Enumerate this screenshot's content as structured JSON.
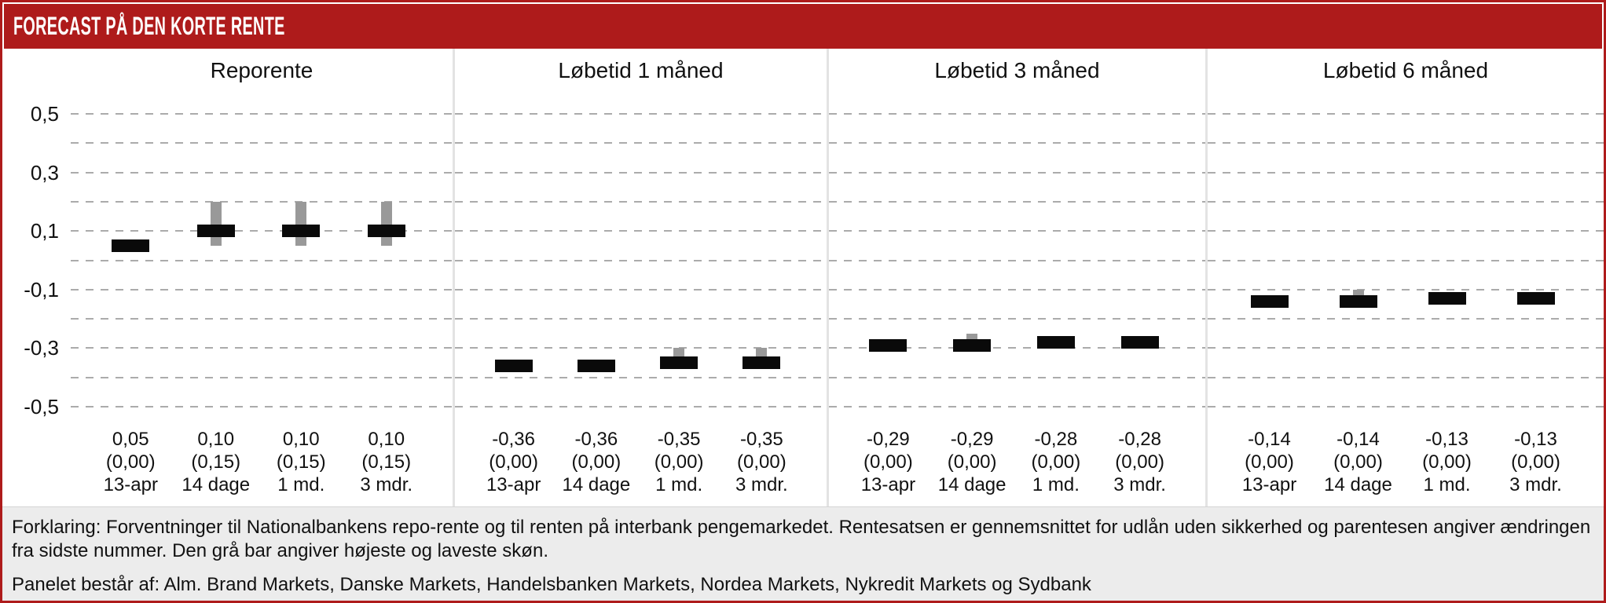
{
  "header": {
    "title": "FORECAST PÅ DEN KORTE RENTE"
  },
  "colors": {
    "accent_red": "#AE1B1B",
    "bar_black": "#0a0a0a",
    "bar_gray": "#999999",
    "grid_dash": "#ababab",
    "panel_separator": "#e3e3e3",
    "footer_bg": "#ececec"
  },
  "y_axis": {
    "tick_labels": [
      "0,5",
      "0,3",
      "0,1",
      "-0,1",
      "-0,3",
      "-0,5"
    ],
    "tick_values": [
      0.5,
      0.3,
      0.1,
      -0.1,
      -0.3,
      -0.5
    ]
  },
  "chart_data": {
    "type": "bar",
    "title": "FORECAST PÅ DEN KORTE RENTE",
    "ylim": [
      -0.5,
      0.5
    ],
    "grid": "horizontal dashed lines every 0.1",
    "legend": "black bar = mean forecast, gray bar = highest and lowest estimate",
    "panels": [
      {
        "title": "Reporente",
        "bars": [
          {
            "period": "13-apr",
            "value": 0.05,
            "value_label": "0,05",
            "change_label": "(0,00)",
            "range_high": null,
            "range_low": null
          },
          {
            "period": "14 dage",
            "value": 0.1,
            "value_label": "0,10",
            "change_label": "(0,15)",
            "range_high": 0.2,
            "range_low": 0.05
          },
          {
            "period": "1 md.",
            "value": 0.1,
            "value_label": "0,10",
            "change_label": "(0,15)",
            "range_high": 0.2,
            "range_low": 0.05
          },
          {
            "period": "3 mdr.",
            "value": 0.1,
            "value_label": "0,10",
            "change_label": "(0,15)",
            "range_high": 0.2,
            "range_low": 0.05
          }
        ]
      },
      {
        "title": "Løbetid 1 måned",
        "bars": [
          {
            "period": "13-apr",
            "value": -0.36,
            "value_label": "-0,36",
            "change_label": "(0,00)",
            "range_high": null,
            "range_low": null
          },
          {
            "period": "14 dage",
            "value": -0.36,
            "value_label": "-0,36",
            "change_label": "(0,00)",
            "range_high": null,
            "range_low": null
          },
          {
            "period": "1 md.",
            "value": -0.35,
            "value_label": "-0,35",
            "change_label": "(0,00)",
            "range_high": -0.3,
            "range_low": -0.36
          },
          {
            "period": "3 mdr.",
            "value": -0.35,
            "value_label": "-0,35",
            "change_label": "(0,00)",
            "range_high": -0.3,
            "range_low": -0.36
          }
        ]
      },
      {
        "title": "Løbetid 3 måned",
        "bars": [
          {
            "period": "13-apr",
            "value": -0.29,
            "value_label": "-0,29",
            "change_label": "(0,00)",
            "range_high": null,
            "range_low": null
          },
          {
            "period": "14 dage",
            "value": -0.29,
            "value_label": "-0,29",
            "change_label": "(0,00)",
            "range_high": -0.25,
            "range_low": -0.3
          },
          {
            "period": "1 md.",
            "value": -0.28,
            "value_label": "-0,28",
            "change_label": "(0,00)",
            "range_high": -0.26,
            "range_low": -0.29
          },
          {
            "period": "3 mdr.",
            "value": -0.28,
            "value_label": "-0,28",
            "change_label": "(0,00)",
            "range_high": -0.26,
            "range_low": -0.29
          }
        ]
      },
      {
        "title": "Løbetid 6 måned",
        "bars": [
          {
            "period": "13-apr",
            "value": -0.14,
            "value_label": "-0,14",
            "change_label": "(0,00)",
            "range_high": null,
            "range_low": null
          },
          {
            "period": "14 dage",
            "value": -0.14,
            "value_label": "-0,14",
            "change_label": "(0,00)",
            "range_high": -0.1,
            "range_low": -0.15
          },
          {
            "period": "1 md.",
            "value": -0.13,
            "value_label": "-0,13",
            "change_label": "(0,00)",
            "range_high": -0.11,
            "range_low": -0.14
          },
          {
            "period": "3 mdr.",
            "value": -0.13,
            "value_label": "-0,13",
            "change_label": "(0,00)",
            "range_high": -0.11,
            "range_low": -0.14
          }
        ]
      }
    ]
  },
  "footer": {
    "explanation": "Forklaring: Forventninger til Nationalbankens repo-rente og til renten på interbank pengemarkedet. Rentesatsen er gennemsnittet for udlån uden sikkerhed og parentesen angiver ændringen fra sidste nummer. Den grå bar angiver højeste og laveste skøn.",
    "panel_list": "Panelet består af: Alm. Brand Markets, Danske Markets, Handelsbanken Markets, Nordea Markets, Nykredit Markets og Sydbank"
  }
}
